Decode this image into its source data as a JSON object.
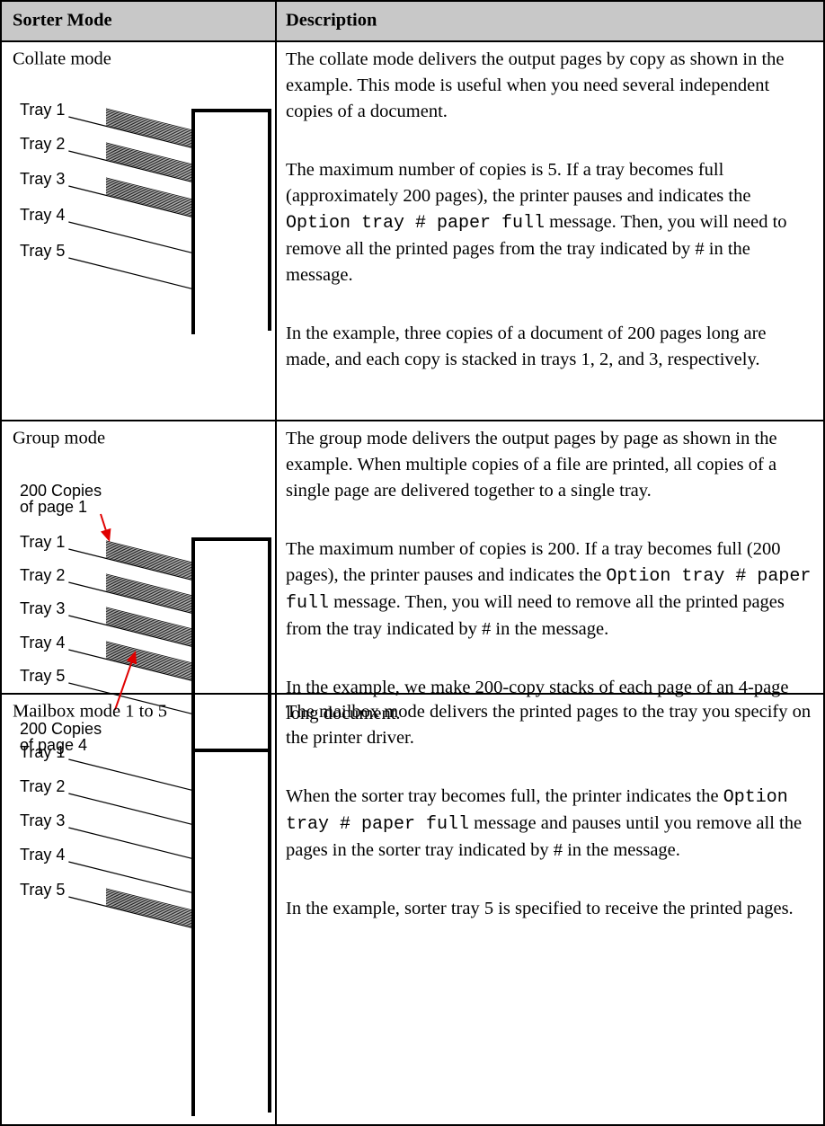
{
  "table": {
    "headers": [
      "Sorter Mode",
      "Description"
    ],
    "rows": [
      {
        "mode": "Collate mode",
        "diagram": {
          "trays": [
            "Tray 1",
            "Tray 2",
            "Tray 3",
            "Tray 4",
            "Tray 5"
          ]
        },
        "description": [
          "The collate mode delivers the output pages by copy as shown in the example. This mode is useful when you need several independent copies of a document.",
          {
            "before": "The maximum number of copies is 5. If a tray becomes full (approximately 200 pages), the printer pauses and indicates the ",
            "code": "Option tray # paper full",
            "after": " message. Then, you will need to remove all the printed pages from the tray indicated by # in the message."
          },
          "In the example, three copies of a document of 200 pages long are made, and each copy is stacked in trays 1, 2, and 3, respectively."
        ]
      },
      {
        "mode": "Group mode",
        "diagram": {
          "top_label": [
            "200 Copies",
            "of page 1"
          ],
          "trays": [
            "Tray 1",
            "Tray 2",
            "Tray 3",
            "Tray 4",
            "Tray 5"
          ],
          "bottom_label": [
            "200 Copies",
            "of page 4"
          ]
        },
        "description": [
          "The group mode delivers the output pages by page as shown in the example. When multiple copies of a file are printed, all copies of a single page are delivered together to a single tray.",
          {
            "before": "The maximum number of copies is 200. If a tray becomes full (200 pages), the printer pauses and indicates the ",
            "code": "Option tray # paper full",
            "after": " message. Then, you will need to remove all the printed pages from the tray indicated by # in the message."
          },
          "In the example, we make 200-copy stacks of each page of an 4-page long document."
        ]
      },
      {
        "mode": "Mailbox mode 1 to 5",
        "diagram": {
          "trays": [
            "Tray 1",
            "Tray 2",
            "Tray 3",
            "Tray 4",
            "Tray 5"
          ]
        },
        "description": [
          "The mailbox mode delivers the printed pages to the tray you specify on the printer driver.",
          {
            "before": "When the sorter tray becomes full, the printer indicates the ",
            "code": "Option tray # paper full",
            "after": " message and pauses until you remove all the pages in the sorter tray indicated by # in the message."
          },
          "In the example, sorter tray 5 is specified to receive the printed pages."
        ]
      }
    ]
  }
}
